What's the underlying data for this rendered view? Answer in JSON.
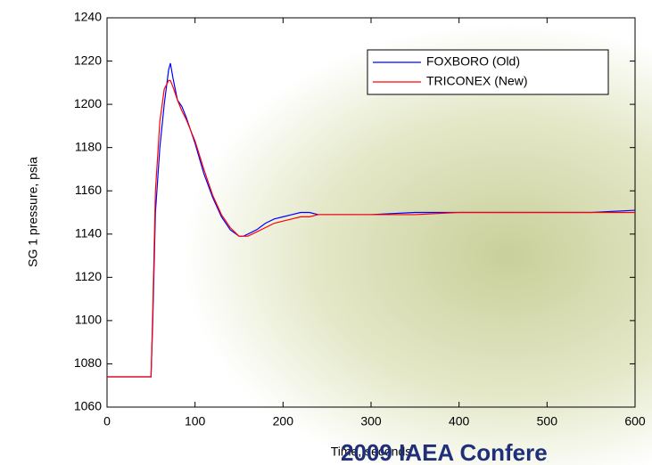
{
  "chart_data": {
    "type": "line",
    "xlabel": "Time, seconds",
    "ylabel": "SG 1 pressure, psia",
    "footer": "2009 IAEA Confere",
    "x": [
      0,
      10,
      20,
      30,
      40,
      48,
      50,
      52,
      55,
      60,
      65,
      70,
      72,
      75,
      80,
      85,
      90,
      100,
      110,
      120,
      130,
      140,
      150,
      155,
      160,
      170,
      180,
      190,
      200,
      210,
      220,
      230,
      240,
      250,
      300,
      350,
      400,
      450,
      500,
      550,
      600
    ],
    "series": [
      {
        "name": "FOXBORO (Old)",
        "color": "#0000ff",
        "values": [
          1074,
          1074,
          1074,
          1074,
          1074,
          1074,
          1074,
          1100,
          1150,
          1180,
          1200,
          1216,
          1219,
          1212,
          1202,
          1199,
          1194,
          1182,
          1168,
          1157,
          1148,
          1142,
          1139,
          1139,
          1140,
          1142,
          1145,
          1147,
          1148,
          1149,
          1150,
          1150,
          1149,
          1149,
          1149,
          1150,
          1150,
          1150,
          1150,
          1150,
          1151
        ]
      },
      {
        "name": "TRICONEX (New)",
        "color": "#ff0000",
        "values": [
          1074,
          1074,
          1074,
          1074,
          1074,
          1074,
          1074,
          1105,
          1160,
          1192,
          1207,
          1211,
          1211,
          1208,
          1202,
          1197,
          1193,
          1183,
          1170,
          1158,
          1149,
          1143,
          1139,
          1139,
          1139,
          1141,
          1143,
          1145,
          1146,
          1147,
          1148,
          1148,
          1149,
          1149,
          1149,
          1149,
          1150,
          1150,
          1150,
          1150,
          1150
        ]
      }
    ],
    "xlim": [
      0,
      600
    ],
    "xticks": [
      0,
      100,
      200,
      300,
      400,
      500,
      600
    ],
    "ylim": [
      1060,
      1240
    ],
    "yticks": [
      1060,
      1080,
      1100,
      1120,
      1140,
      1160,
      1180,
      1200,
      1220,
      1240
    ],
    "legend": "upper right"
  }
}
